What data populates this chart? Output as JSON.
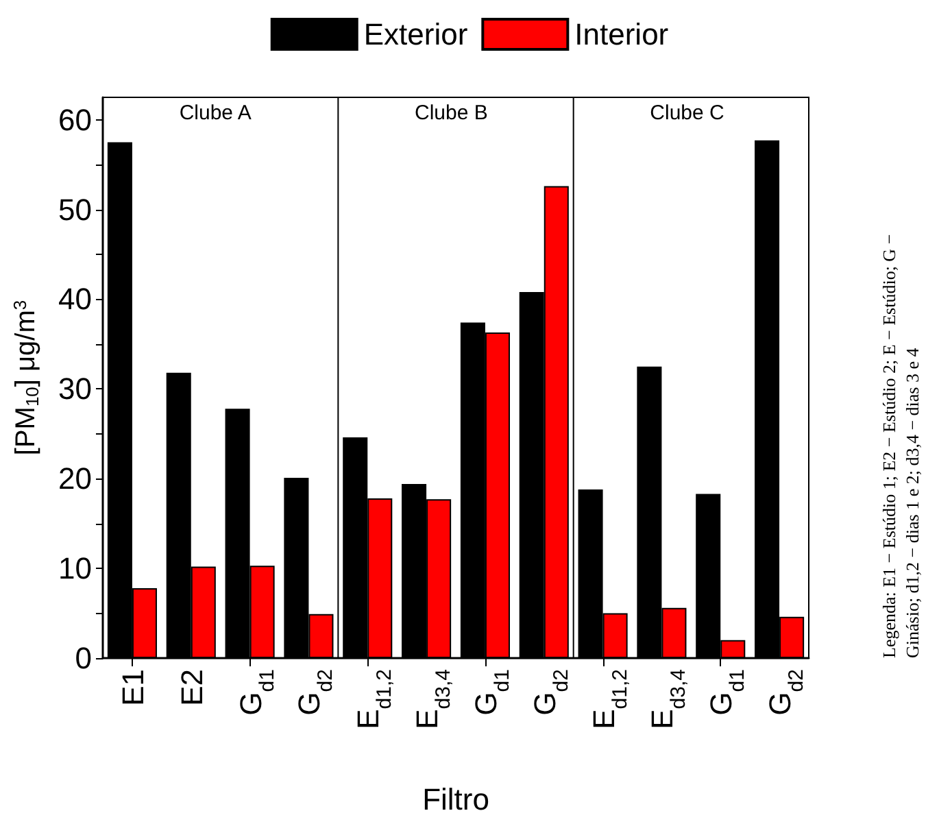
{
  "chart_data": {
    "type": "bar",
    "categories": [
      "E1",
      "E2",
      "G$_{d1}$",
      "G$_{d2}$",
      "E$_{d1,2}$",
      "E$_{d3,4}$",
      "G$_{d1}$",
      "G$_{d2}$",
      "E$_{d1,2}$",
      "E$_{d3,4}$",
      "G$_{d1}$",
      "G$_{d2}$"
    ],
    "series": [
      {
        "name": "Exterior",
        "color": "#000000",
        "values": [
          57.5,
          31.8,
          27.8,
          20.1,
          24.6,
          19.4,
          37.4,
          40.8,
          18.8,
          32.5,
          18.3,
          57.7
        ]
      },
      {
        "name": "Interior",
        "color": "#ff0000",
        "values": [
          7.8,
          10.2,
          10.3,
          4.9,
          17.8,
          17.7,
          36.3,
          52.6,
          5.0,
          5.6,
          2.0,
          4.6
        ]
      }
    ],
    "xlabel": "Filtro",
    "ylabel": "[PM$_{10}$] μg/m$^{3}$",
    "ylim": [
      0,
      62.5
    ],
    "yticks": [
      0,
      {
        "value": 5,
        "label": null
      },
      10,
      {
        "value": 15,
        "label": null
      },
      20,
      {
        "value": 25,
        "label": null
      },
      30,
      {
        "value": 35,
        "label": null
      },
      40,
      {
        "value": 45,
        "label": null
      },
      50,
      {
        "value": 55,
        "label": null
      },
      60
    ],
    "legend": "top",
    "annotations": [
      "Clube A",
      "Clube B",
      "Clube C",
      "Legenda: E1 − Estúdio 1; E2 − Estúdio 2; E − Estúdio; G − Ginásio; d1,2 − dias 1 e 2; d3,4 − dias 3 e 4"
    ]
  }
}
